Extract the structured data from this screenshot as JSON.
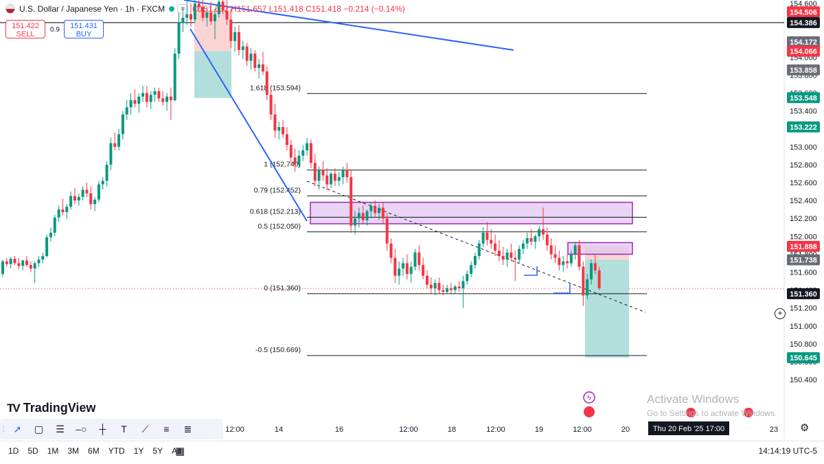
{
  "header": {
    "symbol_title": "U.S. Dollar / Japanese Yen · 1h · FXCM",
    "wave_icon": "≈",
    "ohlc": "O151.632 H151.657 L151.418 C151.418 −0.214 (−0.14%)"
  },
  "trade": {
    "sell_price": "151.422",
    "sell_label": "SELL",
    "spread": "0.9",
    "buy_price": "151.431",
    "buy_label": "BUY"
  },
  "brand": {
    "logo_mark": "TV",
    "logo_text": "TradingView"
  },
  "toolbar_icons": [
    "cursor-icon",
    "rectangle-icon",
    "horizontal-lines-icon",
    "horizontal-ray-icon",
    "crosshair-icon",
    "text-tool-icon",
    "trendline-icon",
    "fib-retracement-icon",
    "fib-extension-icon"
  ],
  "bottom": {
    "ranges": [
      "1D",
      "5D",
      "1M",
      "3M",
      "6M",
      "YTD",
      "1Y",
      "5Y",
      "All"
    ],
    "clock": "14:14:19 UTC-5"
  },
  "watermark": {
    "title": "Activate Windows",
    "sub": "Go to Settings to activate Windows."
  },
  "chart_data": {
    "type": "candlestick",
    "colors": {
      "up": "#089981",
      "down": "#f23645",
      "trend_blue": "#2962ff",
      "zone_fill": "#e1c5f0",
      "zone_border": "#9c27b0",
      "target_fill": "#b2dfdb",
      "stop_fill": "#fcd4d4"
    },
    "y_ticks": [
      "154.600",
      "154.400",
      "154.200",
      "154.000",
      "153.800",
      "153.600",
      "153.400",
      "153.200",
      "153.000",
      "152.800",
      "152.600",
      "152.400",
      "152.200",
      "152.000",
      "151.800",
      "151.600",
      "151.400",
      "151.200",
      "151.000",
      "150.800",
      "150.600",
      "150.400"
    ],
    "x_ticks": [
      "12:00",
      "14",
      "16",
      "12:00",
      "18",
      "12:00",
      "19",
      "12:00",
      "20",
      "23"
    ],
    "crosshair_date": "Thu 20 Feb '25   17:00",
    "price_tags": [
      {
        "v": 154.506,
        "text": "154.506",
        "bg": "#f23645",
        "fg": "#ffffff"
      },
      {
        "v": 154.386,
        "text": "154.386",
        "bg": "#131722",
        "fg": "#ffffff"
      },
      {
        "v": 154.172,
        "text": "154.172",
        "bg": "#6a6d78",
        "fg": "#ffffff"
      },
      {
        "v": 154.066,
        "text": "154.066",
        "bg": "#f23645",
        "fg": "#ffffff"
      },
      {
        "v": 153.858,
        "text": "153.858",
        "bg": "#6a6d78",
        "fg": "#ffffff"
      },
      {
        "v": 153.548,
        "text": "153.548",
        "bg": "#089981",
        "fg": "#ffffff"
      },
      {
        "v": 153.222,
        "text": "153.222",
        "bg": "#089981",
        "fg": "#ffffff"
      },
      {
        "v": 151.888,
        "text": "151.888",
        "bg": "#f23645",
        "fg": "#ffffff"
      },
      {
        "v": 151.738,
        "text": "151.738",
        "bg": "#6a6d78",
        "fg": "#ffffff"
      },
      {
        "v": 151.36,
        "text": "151.360",
        "bg": "#131722",
        "fg": "#ffffff"
      },
      {
        "v": 150.645,
        "text": "150.645",
        "bg": "#089981",
        "fg": "#ffffff"
      }
    ],
    "fib_levels": [
      {
        "ratio": "1.618",
        "price": 153.594,
        "label": "1.618 (153.594)"
      },
      {
        "ratio": "1",
        "price": 152.74,
        "label": "1 (152.740)"
      },
      {
        "ratio": "0.79",
        "price": 152.452,
        "label": "0.79 (152.452)"
      },
      {
        "ratio": "0.618",
        "price": 152.213,
        "label": "0.618 (152.213)"
      },
      {
        "ratio": "0.5",
        "price": 152.05,
        "label": "0.5 (152.050)"
      },
      {
        "ratio": "0",
        "price": 151.36,
        "label": "0 (151.360)"
      },
      {
        "ratio": "-0.5",
        "price": 150.669,
        "label": "-0.5 (150.669)"
      }
    ],
    "zones": [
      {
        "name": "supply-zone-upper",
        "from": 152.14,
        "to": 152.38
      },
      {
        "name": "supply-zone-lower",
        "from": 151.8,
        "to": 151.93
      }
    ],
    "current_price": 151.418,
    "candles": [
      [
        151.58,
        151.74,
        151.55,
        151.72
      ],
      [
        151.72,
        151.76,
        151.66,
        151.69
      ],
      [
        151.69,
        151.77,
        151.64,
        151.75
      ],
      [
        151.75,
        151.78,
        151.68,
        151.7
      ],
      [
        151.7,
        151.76,
        151.63,
        151.67
      ],
      [
        151.67,
        151.74,
        151.62,
        151.73
      ],
      [
        151.73,
        151.78,
        151.66,
        151.68
      ],
      [
        151.68,
        151.72,
        151.6,
        151.64
      ],
      [
        151.64,
        151.72,
        151.48,
        151.7
      ],
      [
        151.7,
        151.78,
        151.66,
        151.74
      ],
      [
        151.74,
        151.82,
        151.7,
        151.78
      ],
      [
        151.78,
        152.02,
        151.76,
        151.99
      ],
      [
        151.99,
        152.1,
        151.94,
        152.04
      ],
      [
        152.04,
        152.24,
        152.0,
        152.21
      ],
      [
        152.21,
        152.34,
        152.16,
        152.3
      ],
      [
        152.3,
        152.42,
        152.24,
        152.27
      ],
      [
        152.27,
        152.36,
        152.2,
        152.33
      ],
      [
        152.33,
        152.5,
        152.3,
        152.45
      ],
      [
        152.45,
        152.54,
        152.36,
        152.4
      ],
      [
        152.4,
        152.48,
        152.34,
        152.44
      ],
      [
        152.44,
        152.56,
        152.4,
        152.52
      ],
      [
        152.52,
        152.6,
        152.44,
        152.48
      ],
      [
        152.48,
        152.56,
        152.3,
        152.36
      ],
      [
        152.36,
        152.44,
        152.28,
        152.41
      ],
      [
        152.41,
        152.62,
        152.38,
        152.58
      ],
      [
        152.58,
        152.66,
        152.52,
        152.62
      ],
      [
        152.62,
        152.84,
        152.56,
        152.8
      ],
      [
        152.8,
        153.1,
        152.74,
        153.04
      ],
      [
        153.04,
        153.16,
        152.96,
        153.0
      ],
      [
        153.0,
        153.2,
        152.96,
        153.14
      ],
      [
        153.14,
        153.4,
        153.08,
        153.36
      ],
      [
        153.36,
        153.52,
        153.3,
        153.44
      ],
      [
        153.44,
        153.6,
        153.36,
        153.52
      ],
      [
        153.52,
        153.64,
        153.44,
        153.48
      ],
      [
        153.48,
        153.6,
        153.38,
        153.56
      ],
      [
        153.56,
        153.68,
        153.5,
        153.6
      ],
      [
        153.6,
        153.68,
        153.44,
        153.5
      ],
      [
        153.5,
        153.62,
        153.42,
        153.58
      ],
      [
        153.58,
        153.66,
        153.5,
        153.62
      ],
      [
        153.62,
        153.66,
        153.5,
        153.54
      ],
      [
        153.54,
        153.62,
        153.46,
        153.5
      ],
      [
        153.5,
        153.6,
        153.4,
        153.56
      ],
      [
        153.56,
        153.66,
        153.3,
        153.52
      ],
      [
        153.52,
        154.1,
        153.5,
        154.04
      ],
      [
        154.04,
        154.5,
        153.98,
        154.38
      ],
      [
        154.38,
        154.56,
        154.28,
        154.44
      ],
      [
        154.44,
        154.62,
        154.36,
        154.48
      ],
      [
        154.48,
        154.6,
        154.34,
        154.42
      ],
      [
        154.42,
        154.66,
        154.38,
        154.6
      ],
      [
        154.6,
        154.72,
        154.5,
        154.56
      ],
      [
        154.56,
        154.66,
        154.4,
        154.44
      ],
      [
        154.44,
        154.56,
        154.34,
        154.5
      ],
      [
        154.5,
        154.62,
        154.36,
        154.4
      ],
      [
        154.4,
        154.54,
        154.2,
        154.48
      ],
      [
        154.48,
        154.68,
        154.44,
        154.62
      ],
      [
        154.62,
        154.7,
        154.48,
        154.52
      ],
      [
        154.52,
        154.66,
        154.36,
        154.42
      ],
      [
        154.42,
        154.54,
        154.1,
        154.18
      ],
      [
        154.18,
        154.34,
        154.06,
        154.28
      ],
      [
        154.28,
        154.36,
        154.02,
        154.08
      ],
      [
        154.08,
        154.18,
        153.98,
        154.12
      ],
      [
        154.12,
        154.16,
        153.9,
        153.96
      ],
      [
        153.96,
        154.1,
        153.86,
        154.04
      ],
      [
        154.04,
        154.08,
        153.84,
        153.88
      ],
      [
        153.88,
        153.98,
        153.76,
        153.92
      ],
      [
        153.92,
        154.06,
        153.8,
        153.84
      ],
      [
        153.84,
        153.9,
        153.52,
        153.58
      ],
      [
        153.58,
        153.64,
        153.3,
        153.36
      ],
      [
        153.36,
        153.48,
        153.1,
        153.18
      ],
      [
        153.18,
        153.28,
        153.08,
        153.22
      ],
      [
        153.22,
        153.3,
        153.1,
        153.14
      ],
      [
        153.14,
        153.22,
        152.96,
        153.02
      ],
      [
        153.02,
        153.08,
        152.82,
        152.88
      ],
      [
        152.88,
        152.98,
        152.72,
        152.8
      ],
      [
        152.8,
        152.96,
        152.76,
        152.9
      ],
      [
        152.9,
        153.02,
        152.84,
        152.96
      ],
      [
        152.96,
        153.1,
        152.9,
        153.04
      ],
      [
        153.04,
        153.08,
        152.76,
        152.82
      ],
      [
        152.82,
        152.92,
        152.56,
        152.62
      ],
      [
        152.62,
        152.78,
        152.52,
        152.74
      ],
      [
        152.74,
        152.84,
        152.62,
        152.68
      ],
      [
        152.68,
        152.76,
        152.52,
        152.58
      ],
      [
        152.58,
        152.72,
        152.54,
        152.7
      ],
      [
        152.7,
        152.76,
        152.56,
        152.62
      ],
      [
        152.62,
        152.72,
        152.56,
        152.66
      ],
      [
        152.66,
        152.78,
        152.58,
        152.74
      ],
      [
        152.74,
        152.82,
        152.6,
        152.66
      ],
      [
        152.66,
        152.74,
        152.04,
        152.12
      ],
      [
        152.12,
        152.28,
        152.02,
        152.2
      ],
      [
        152.2,
        152.32,
        152.1,
        152.26
      ],
      [
        152.26,
        152.34,
        152.14,
        152.18
      ],
      [
        152.18,
        152.3,
        152.12,
        152.28
      ],
      [
        152.28,
        152.38,
        152.2,
        152.34
      ],
      [
        152.34,
        152.4,
        152.22,
        152.26
      ],
      [
        152.26,
        152.36,
        152.18,
        152.32
      ],
      [
        152.32,
        152.38,
        152.14,
        152.2
      ],
      [
        152.2,
        152.26,
        151.84,
        151.92
      ],
      [
        151.92,
        151.98,
        151.7,
        151.76
      ],
      [
        151.76,
        151.86,
        151.48,
        151.56
      ],
      [
        151.56,
        151.72,
        151.46,
        151.64
      ],
      [
        151.64,
        151.76,
        151.56,
        151.7
      ],
      [
        151.7,
        151.8,
        151.52,
        151.58
      ],
      [
        151.58,
        151.72,
        151.48,
        151.66
      ],
      [
        151.66,
        151.86,
        151.62,
        151.82
      ],
      [
        151.82,
        151.9,
        151.62,
        151.68
      ],
      [
        151.68,
        151.76,
        151.52,
        151.56
      ],
      [
        151.56,
        151.62,
        151.42,
        151.46
      ],
      [
        151.46,
        151.54,
        151.36,
        151.42
      ],
      [
        151.42,
        151.52,
        151.34,
        151.48
      ],
      [
        151.48,
        151.54,
        151.36,
        151.4
      ],
      [
        151.4,
        151.46,
        151.34,
        151.38
      ],
      [
        151.38,
        151.46,
        151.36,
        151.42
      ],
      [
        151.42,
        151.48,
        151.36,
        151.4
      ],
      [
        151.4,
        151.46,
        151.36,
        151.44
      ],
      [
        151.44,
        151.5,
        151.38,
        151.42
      ],
      [
        151.42,
        151.56,
        151.2,
        151.5
      ],
      [
        151.5,
        151.62,
        151.46,
        151.58
      ],
      [
        151.58,
        151.72,
        151.54,
        151.68
      ],
      [
        151.68,
        151.82,
        151.64,
        151.78
      ],
      [
        151.78,
        151.96,
        151.74,
        151.92
      ],
      [
        151.92,
        152.1,
        151.88,
        152.04
      ],
      [
        152.04,
        152.16,
        151.9,
        151.96
      ],
      [
        151.96,
        152.08,
        151.86,
        151.92
      ],
      [
        151.92,
        152.02,
        151.78,
        151.84
      ],
      [
        151.84,
        151.96,
        151.72,
        151.78
      ],
      [
        151.78,
        151.88,
        151.68,
        151.74
      ],
      [
        151.74,
        151.86,
        151.66,
        151.82
      ],
      [
        151.82,
        151.92,
        151.72,
        151.76
      ],
      [
        151.76,
        151.84,
        151.5,
        151.74
      ],
      [
        151.74,
        151.9,
        151.7,
        151.86
      ],
      [
        151.86,
        151.96,
        151.8,
        151.92
      ],
      [
        151.92,
        152.04,
        151.86,
        151.98
      ],
      [
        151.98,
        152.08,
        151.9,
        151.94
      ],
      [
        151.94,
        152.02,
        151.86,
        152.0
      ],
      [
        152.0,
        152.12,
        151.94,
        152.08
      ],
      [
        152.08,
        152.32,
        151.96,
        152.02
      ],
      [
        152.02,
        152.1,
        151.84,
        151.9
      ],
      [
        151.9,
        151.98,
        151.74,
        151.8
      ],
      [
        151.8,
        151.9,
        151.7,
        151.76
      ],
      [
        151.76,
        151.84,
        151.62,
        151.68
      ],
      [
        151.68,
        151.78,
        151.6,
        151.72
      ],
      [
        151.72,
        151.8,
        151.64,
        151.7
      ],
      [
        151.7,
        151.84,
        151.66,
        151.8
      ],
      [
        151.8,
        151.94,
        151.74,
        151.9
      ],
      [
        151.9,
        151.96,
        151.62,
        151.66
      ],
      [
        151.66,
        151.72,
        151.22,
        151.34
      ],
      [
        151.34,
        151.58,
        151.3,
        151.52
      ],
      [
        151.52,
        151.74,
        151.46,
        151.7
      ],
      [
        151.7,
        151.8,
        151.58,
        151.62
      ],
      [
        151.62,
        151.66,
        151.4,
        151.42
      ]
    ]
  }
}
